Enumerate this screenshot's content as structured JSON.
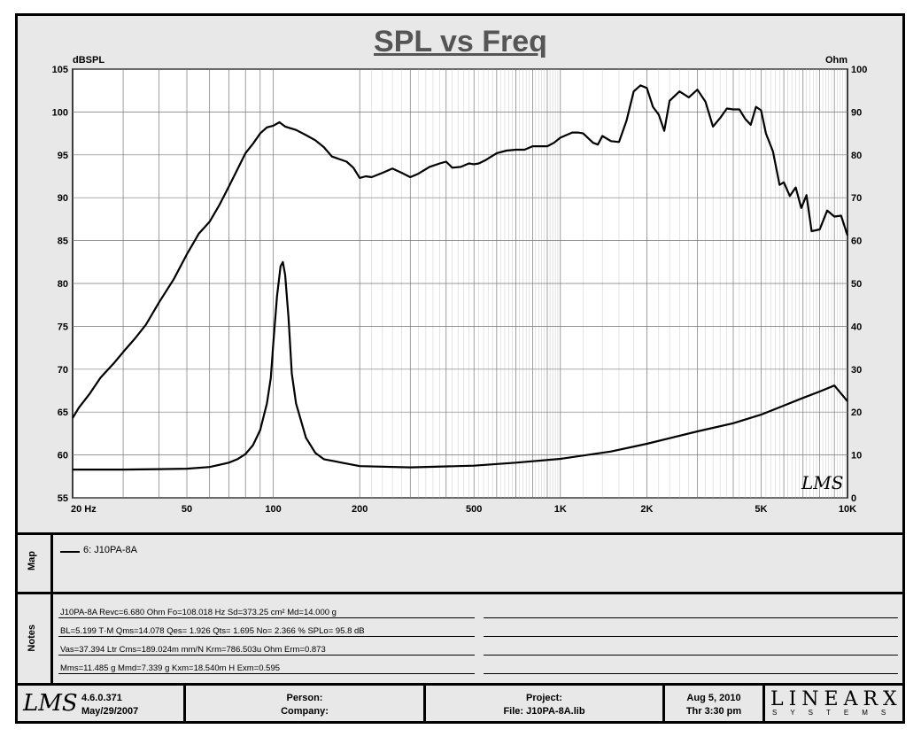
{
  "chart_data": {
    "type": "line",
    "title": "SPL vs Freq",
    "ylabel_left": "dBSPL",
    "ylabel_right": "Ohm",
    "x_scale": "log",
    "xlim": [
      20,
      10000
    ],
    "ylim_left": [
      55,
      105
    ],
    "ylim_right": [
      0,
      100
    ],
    "x_tick_labels": [
      {
        "value": 20,
        "label": "20  Hz"
      },
      {
        "value": 50,
        "label": "50"
      },
      {
        "value": 100,
        "label": "100"
      },
      {
        "value": 200,
        "label": "200"
      },
      {
        "value": 500,
        "label": "500"
      },
      {
        "value": 1000,
        "label": "1K"
      },
      {
        "value": 2000,
        "label": "2K"
      },
      {
        "value": 5000,
        "label": "5K"
      },
      {
        "value": 10000,
        "label": "10K"
      }
    ],
    "y_left_ticks": [
      55,
      60,
      65,
      70,
      75,
      80,
      85,
      90,
      95,
      100,
      105
    ],
    "y_right_ticks": [
      0,
      10,
      20,
      30,
      40,
      50,
      60,
      70,
      80,
      90,
      100
    ],
    "grid": true,
    "watermark": "LMS",
    "series": [
      {
        "name": "6: J10PA-8A",
        "axis": "left",
        "x": [
          20,
          21,
          23,
          25,
          28,
          30,
          33,
          36,
          40,
          45,
          50,
          55,
          60,
          65,
          70,
          75,
          80,
          85,
          90,
          95,
          100,
          105,
          110,
          120,
          130,
          140,
          150,
          160,
          180,
          190,
          200,
          210,
          220,
          240,
          260,
          280,
          300,
          320,
          350,
          380,
          400,
          420,
          450,
          480,
          500,
          520,
          550,
          600,
          650,
          700,
          750,
          800,
          850,
          900,
          950,
          1000,
          1100,
          1150,
          1200,
          1300,
          1350,
          1400,
          1500,
          1600,
          1700,
          1800,
          1900,
          2000,
          2100,
          2200,
          2300,
          2400,
          2600,
          2800,
          3000,
          3200,
          3400,
          3600,
          3800,
          4000,
          4200,
          4400,
          4600,
          4800,
          5000,
          5200,
          5500,
          5800,
          6000,
          6300,
          6600,
          6900,
          7200,
          7500,
          8000,
          8500,
          9000,
          9500,
          10000
        ],
        "y": [
          64.3,
          65.5,
          67.2,
          69,
          70.8,
          72,
          73.6,
          75.2,
          77.8,
          80.5,
          83.4,
          85.8,
          87.2,
          89.2,
          91.3,
          93.3,
          95.2,
          96.3,
          97.5,
          98.2,
          98.4,
          98.8,
          98.3,
          97.9,
          97.3,
          96.7,
          95.9,
          94.8,
          94.2,
          93.5,
          92.3,
          92.5,
          92.4,
          92.9,
          93.4,
          92.9,
          92.4,
          92.8,
          93.6,
          94,
          94.2,
          93.5,
          93.6,
          94,
          93.9,
          94,
          94.4,
          95.2,
          95.5,
          95.6,
          95.6,
          96,
          96,
          96,
          96.4,
          97,
          97.6,
          97.6,
          97.5,
          96.4,
          96.2,
          97.2,
          96.6,
          96.5,
          99,
          102.4,
          103.1,
          102.8,
          100.6,
          99.7,
          97.8,
          101.3,
          102.4,
          101.7,
          102.6,
          101.2,
          98.3,
          99.3,
          100.4,
          100.3,
          100.3,
          99.2,
          98.5,
          100.6,
          100.2,
          97.5,
          95.4,
          91.5,
          91.8,
          90.2,
          91.2,
          88.8,
          90.3,
          86.1,
          86.3,
          88.5,
          87.8,
          87.9,
          85.6
        ]
      },
      {
        "name": "Impedance",
        "axis": "right",
        "x": [
          20,
          30,
          40,
          50,
          60,
          70,
          75,
          80,
          85,
          90,
          95,
          98,
          100,
          103,
          106,
          108,
          110,
          113,
          116,
          120,
          130,
          140,
          150,
          200,
          300,
          500,
          700,
          1000,
          1500,
          2000,
          3000,
          4000,
          5000,
          6000,
          7000,
          8000,
          9000,
          10000
        ],
        "y": [
          6.6,
          6.6,
          6.7,
          6.8,
          7.2,
          8.2,
          9,
          10.2,
          12.3,
          15.8,
          22,
          28,
          36,
          47,
          54,
          55,
          52,
          42,
          29,
          22,
          14,
          10.5,
          9,
          7.4,
          7.1,
          7.5,
          8.2,
          9.1,
          10.8,
          12.6,
          15.5,
          17.4,
          19.4,
          21.5,
          23.3,
          24.8,
          26.2,
          22.5
        ]
      }
    ]
  },
  "legend": {
    "panel_label": "Map",
    "entry": "6: J10PA-8A"
  },
  "notes": {
    "panel_label": "Notes",
    "lines": [
      "J10PA-8A  Revc=6.680  Ohm   Fo=108.018  Hz   Sd=373.25  cm²  Md=14.000  g",
      "BL=5.199  T·M   Qms=14.078   Qes= 1.926   Qts= 1.695   No= 2.366  %   SPLo= 95.8  dB",
      "Vas=37.394  Ltr  Cms=189.024m  mm/N   Krm=786.503u  Ohm   Erm=0.873",
      "Mms=11.485  g   Mmd=7.339  g   Kxm=18.540m  H   Exm=0.595"
    ]
  },
  "footer": {
    "logo": "LMS",
    "version": "4.6.0.371",
    "version_date": "May/29/2007",
    "person_label": "Person:",
    "company_label": "Company:",
    "project_label": "Project:",
    "file_label": "File: J10PA-8A.lib",
    "date": "Aug  5, 2010",
    "time": "Thr  3:30 pm",
    "brand_main": "LINEARX",
    "brand_sub": "SYSTEMS"
  }
}
